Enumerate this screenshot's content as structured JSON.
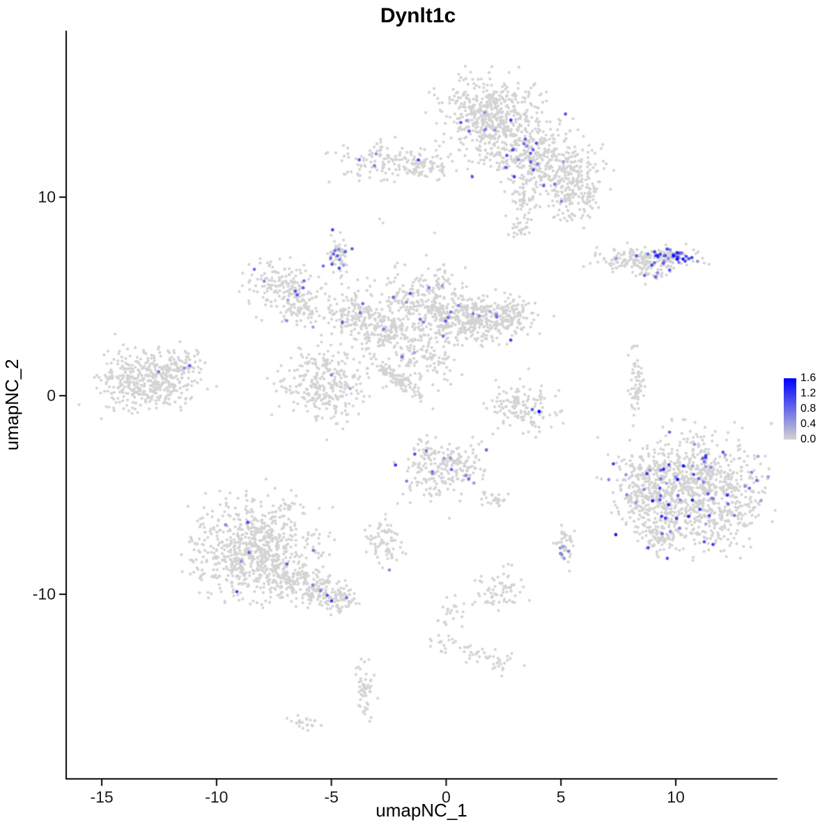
{
  "chart_data": {
    "type": "scatter",
    "title": "Dynlt1c",
    "xlabel": "umapNC_1",
    "ylabel": "umapNC_2",
    "xlim": [
      -16.55,
      14.4
    ],
    "ylim": [
      -19.3,
      18.35
    ],
    "grid": false,
    "x_ticks": [
      {
        "value": -15,
        "label": "-15"
      },
      {
        "value": -10,
        "label": "-10"
      },
      {
        "value": -5,
        "label": "-5"
      },
      {
        "value": 0,
        "label": "0"
      },
      {
        "value": 5,
        "label": "5"
      },
      {
        "value": 10,
        "label": "10"
      }
    ],
    "y_ticks": [
      {
        "value": 10,
        "label": "10"
      },
      {
        "value": 0,
        "label": "0"
      },
      {
        "value": -10,
        "label": "-10"
      }
    ],
    "legend": {
      "ticks": [
        "1.6",
        "1.2",
        "0.8",
        "0.4",
        "0.0"
      ],
      "vmax": 1.6,
      "low_color": "#d3d3d3",
      "high_color": "#0000ff",
      "position": "right"
    },
    "point": {
      "base_color": "#d3d3d3",
      "radius": 2.1,
      "expr_radius": 2.4
    },
    "seed": 42,
    "clusters": [
      {
        "name": "top-main",
        "cx": 1.9,
        "cy": 14.2,
        "sx": 1.05,
        "sy": 0.85,
        "n": 460,
        "expr_frac": 0.035,
        "expr_max": 1.2
      },
      {
        "name": "top-east",
        "cx": 3.3,
        "cy": 12.4,
        "sx": 1.15,
        "sy": 0.8,
        "n": 300,
        "expr_frac": 0.05,
        "expr_max": 1.3
      },
      {
        "name": "top-band",
        "cx": 4.9,
        "cy": 11.5,
        "sx": 0.95,
        "sy": 0.65,
        "n": 190,
        "expr_frac": 0.03,
        "expr_max": 1.1
      },
      {
        "name": "top-tail",
        "cx": 5.6,
        "cy": 10.1,
        "sx": 0.55,
        "sy": 0.75,
        "n": 150,
        "expr_frac": 0.03,
        "expr_max": 1.2
      },
      {
        "name": "top-spur",
        "cx": 3.35,
        "cy": 9.9,
        "sx": 0.3,
        "sy": 0.4,
        "n": 45,
        "expr_frac": 0,
        "expr_max": 0
      },
      {
        "name": "top-dot",
        "cx": 3.2,
        "cy": 8.6,
        "sx": 0.25,
        "sy": 0.3,
        "n": 30,
        "expr_frac": 0,
        "expr_max": 0
      },
      {
        "name": "nw-ridge",
        "cx": -2.6,
        "cy": 11.8,
        "sx": 1.05,
        "sy": 0.45,
        "n": 150,
        "expr_frac": 0.04,
        "expr_max": 1.2
      },
      {
        "name": "nw-ridge-east",
        "cx": -0.8,
        "cy": 11.4,
        "sx": 0.45,
        "sy": 0.3,
        "n": 40,
        "expr_frac": 0.03,
        "expr_max": 1.0
      },
      {
        "name": "east-streak",
        "cx": 8.4,
        "cy": 6.9,
        "sx": 1.05,
        "sy": 0.3,
        "n": 170,
        "expr_frac": 0.07,
        "expr_max": 1.3
      },
      {
        "name": "east-streak-hot",
        "cx": 9.8,
        "cy": 7.0,
        "sx": 0.45,
        "sy": 0.22,
        "n": 70,
        "expr_frac": 0.45,
        "expr_max": 1.5
      },
      {
        "name": "east-streak-south",
        "cx": 9.0,
        "cy": 6.1,
        "sx": 0.35,
        "sy": 0.2,
        "n": 30,
        "expr_frac": 0.1,
        "expr_max": 1.0
      },
      {
        "name": "west-mid",
        "cx": -7.0,
        "cy": 5.6,
        "sx": 0.8,
        "sy": 0.6,
        "n": 160,
        "expr_frac": 0.06,
        "expr_max": 1.2
      },
      {
        "name": "west-mid-south",
        "cx": -6.4,
        "cy": 4.4,
        "sx": 0.5,
        "sy": 0.45,
        "n": 70,
        "expr_frac": 0.04,
        "expr_max": 1.0
      },
      {
        "name": "small-dense",
        "cx": -4.6,
        "cy": 7.0,
        "sx": 0.22,
        "sy": 0.5,
        "n": 60,
        "expr_frac": 0.18,
        "expr_max": 1.1
      },
      {
        "name": "central-w",
        "cx": -3.9,
        "cy": 4.0,
        "sx": 0.7,
        "sy": 0.65,
        "n": 170,
        "expr_frac": 0.02,
        "expr_max": 1.0
      },
      {
        "name": "central-wsw",
        "cx": -2.7,
        "cy": 3.2,
        "sx": 0.55,
        "sy": 0.5,
        "n": 95,
        "expr_frac": 0.02,
        "expr_max": 1.0
      },
      {
        "name": "central-n",
        "cx": -1.1,
        "cy": 4.9,
        "sx": 0.85,
        "sy": 0.8,
        "n": 210,
        "expr_frac": 0.02,
        "expr_max": 1.1
      },
      {
        "name": "central-mid",
        "cx": 0.3,
        "cy": 3.9,
        "sx": 1.0,
        "sy": 0.6,
        "n": 230,
        "expr_frac": 0.025,
        "expr_max": 1.1
      },
      {
        "name": "central-e",
        "cx": 1.9,
        "cy": 3.8,
        "sx": 0.9,
        "sy": 0.55,
        "n": 210,
        "expr_frac": 0.03,
        "expr_max": 1.2
      },
      {
        "name": "central-ene",
        "cx": 2.8,
        "cy": 4.3,
        "sx": 0.4,
        "sy": 0.4,
        "n": 60,
        "expr_frac": 0.05,
        "expr_max": 1.2
      },
      {
        "name": "central-bridge",
        "cx": -2.0,
        "cy": 2.2,
        "sx": 0.8,
        "sy": 0.8,
        "n": 85,
        "expr_frac": 0.01,
        "expr_max": 0.8
      },
      {
        "name": "central-s",
        "cx": -0.6,
        "cy": 1.9,
        "sx": 0.6,
        "sy": 0.6,
        "n": 70,
        "expr_frac": 0.01,
        "expr_max": 0.8
      },
      {
        "name": "far-west",
        "cx": -13.1,
        "cy": 0.8,
        "sx": 1.05,
        "sy": 0.75,
        "n": 400,
        "expr_frac": 0.008,
        "expr_max": 1.0
      },
      {
        "name": "far-west-arm",
        "cx": -11.4,
        "cy": 1.4,
        "sx": 0.5,
        "sy": 0.4,
        "n": 70,
        "expr_frac": 0.02,
        "expr_max": 0.9
      },
      {
        "name": "west-low",
        "cx": -5.2,
        "cy": 0.6,
        "sx": 0.95,
        "sy": 0.9,
        "n": 290,
        "expr_frac": 0.015,
        "expr_max": 1.0
      },
      {
        "name": "diag-streak",
        "cx": -2.2,
        "cy": 0.9,
        "sx": 0.85,
        "sy": 0.16,
        "rot": -40,
        "n": 95,
        "expr_frac": 0,
        "expr_max": 0
      },
      {
        "name": "arc",
        "cx": 3.4,
        "cy": -0.45,
        "sx": 0.75,
        "sy": 0.6,
        "n": 140,
        "expr_frac": 0.02,
        "expr_max": 1.0
      },
      {
        "name": "east-thread",
        "cx": 8.3,
        "cy": 0.4,
        "sx": 0.16,
        "sy": 0.9,
        "n": 55,
        "expr_frac": 0,
        "expr_max": 0
      },
      {
        "name": "south-central",
        "cx": -0.3,
        "cy": -3.8,
        "sx": 0.75,
        "sy": 0.85,
        "n": 190,
        "expr_frac": 0.05,
        "expr_max": 1.2
      },
      {
        "name": "south-central-e",
        "cx": 0.9,
        "cy": -3.5,
        "sx": 0.4,
        "sy": 0.45,
        "n": 45,
        "expr_frac": 0.05,
        "expr_max": 1.0
      },
      {
        "name": "south-small-pair",
        "cx": 2.1,
        "cy": -5.3,
        "sx": 0.3,
        "sy": 0.25,
        "n": 25,
        "expr_frac": 0,
        "expr_max": 0
      },
      {
        "name": "east-big",
        "cx": 10.9,
        "cy": -4.9,
        "sx": 1.45,
        "sy": 1.35,
        "n": 950,
        "expr_frac": 0.055,
        "expr_max": 1.45
      },
      {
        "name": "east-big-west",
        "cx": 8.7,
        "cy": -4.6,
        "sx": 0.6,
        "sy": 1.0,
        "n": 190,
        "expr_frac": 0.04,
        "expr_max": 1.2
      },
      {
        "name": "east-big-tail",
        "cx": 9.4,
        "cy": -7.1,
        "sx": 0.5,
        "sy": 0.45,
        "n": 90,
        "expr_frac": 0.05,
        "expr_max": 1.2
      },
      {
        "name": "sw-big",
        "cx": -8.4,
        "cy": -7.7,
        "sx": 1.35,
        "sy": 1.25,
        "n": 720,
        "expr_frac": 0.012,
        "expr_max": 1.2
      },
      {
        "name": "sw-big-tail",
        "cx": -6.1,
        "cy": -9.5,
        "sx": 0.95,
        "sy": 0.5,
        "rot": -22,
        "n": 190,
        "expr_frac": 0.01,
        "expr_max": 1.0
      },
      {
        "name": "sw-tip",
        "cx": -4.7,
        "cy": -10.3,
        "sx": 0.35,
        "sy": 0.3,
        "n": 55,
        "expr_frac": 0.06,
        "expr_max": 1.1
      },
      {
        "name": "south-small",
        "cx": -2.7,
        "cy": -7.3,
        "sx": 0.4,
        "sy": 0.55,
        "n": 75,
        "expr_frac": 0.04,
        "expr_max": 1.1
      },
      {
        "name": "south-dot",
        "cx": 5.15,
        "cy": -7.5,
        "sx": 0.22,
        "sy": 0.5,
        "n": 45,
        "expr_frac": 0.12,
        "expr_max": 1.1
      },
      {
        "name": "south-knot",
        "cx": 2.3,
        "cy": -9.8,
        "sx": 0.5,
        "sy": 0.5,
        "n": 70,
        "expr_frac": 0.02,
        "expr_max": 0.9
      },
      {
        "name": "trail-1",
        "cx": 0.2,
        "cy": -10.8,
        "sx": 0.3,
        "sy": 0.4,
        "n": 18,
        "expr_frac": 0,
        "expr_max": 0
      },
      {
        "name": "trail-2",
        "cx": -0.2,
        "cy": -12.3,
        "sx": 0.3,
        "sy": 0.5,
        "n": 22,
        "expr_frac": 0,
        "expr_max": 0
      },
      {
        "name": "trail-3",
        "cx": 1.1,
        "cy": -12.9,
        "sx": 0.35,
        "sy": 0.3,
        "n": 18,
        "expr_frac": 0,
        "expr_max": 0
      },
      {
        "name": "trail-4",
        "cx": 2.4,
        "cy": -13.3,
        "sx": 0.4,
        "sy": 0.35,
        "n": 26,
        "expr_frac": 0,
        "expr_max": 0
      },
      {
        "name": "south-spike",
        "cx": -3.5,
        "cy": -14.8,
        "sx": 0.22,
        "sy": 0.75,
        "n": 55,
        "expr_frac": 0.05,
        "expr_max": 1.0
      },
      {
        "name": "south-tiny",
        "cx": -6.1,
        "cy": -16.4,
        "sx": 0.3,
        "sy": 0.18,
        "n": 22,
        "expr_frac": 0,
        "expr_max": 0
      }
    ],
    "extra_points": [
      {
        "x": 4.05,
        "y": -0.8,
        "v": 1.6
      },
      {
        "x": 3.75,
        "y": -0.7,
        "v": 0.9
      },
      {
        "x": 9.9,
        "y": 7.05,
        "v": 1.5
      },
      {
        "x": 8.2,
        "y": 2.5,
        "v": 0
      },
      {
        "x": -2.9,
        "y": 8.9,
        "v": 0
      },
      {
        "x": -2.75,
        "y": 8.7,
        "v": 0
      },
      {
        "x": 6.6,
        "y": -2.1,
        "v": 0
      },
      {
        "x": -0.5,
        "y": 8.2,
        "v": 0
      }
    ]
  }
}
